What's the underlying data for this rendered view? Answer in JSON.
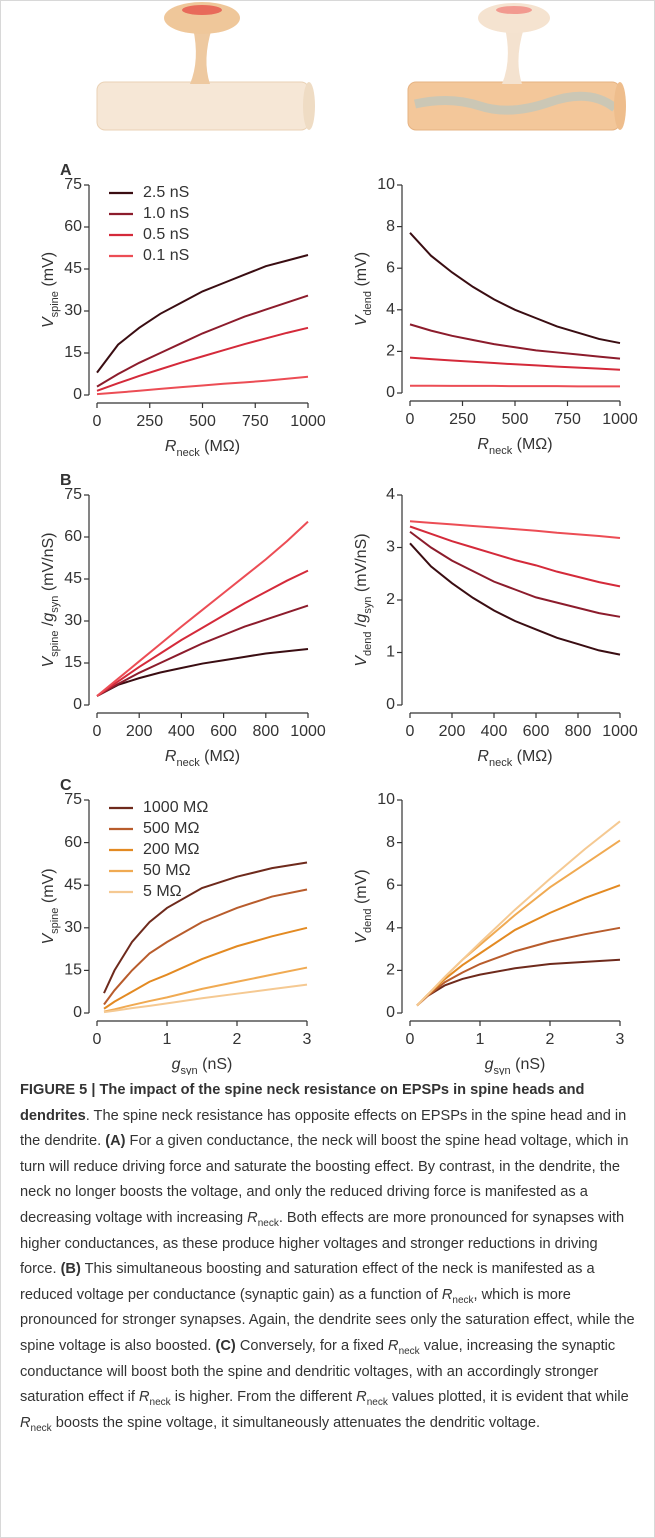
{
  "chart_data": [
    {
      "type": "line",
      "panel": "A",
      "ylabel": [
        {
          "text": "V",
          "italic": true
        },
        {
          "text": "spine",
          "sub": true
        },
        {
          "text": " (mV)"
        }
      ],
      "xlabel": [
        {
          "text": "R",
          "italic": true
        },
        {
          "text": "neck",
          "sub": true
        },
        {
          "text": " (MΩ)"
        }
      ],
      "x": [
        0,
        100,
        200,
        300,
        400,
        500,
        600,
        700,
        800,
        900,
        1000
      ],
      "xlim": [
        0,
        1000
      ],
      "xticks": [
        0,
        250,
        500,
        750,
        1000
      ],
      "ylim": [
        0,
        75
      ],
      "yticks": [
        0,
        15,
        30,
        45,
        60,
        75
      ],
      "legend": "upper left",
      "series": [
        {
          "name": "2.5 nS",
          "color": "#3a0d12",
          "values": [
            8,
            18,
            24,
            29,
            33,
            37,
            40,
            43,
            46,
            48,
            50
          ]
        },
        {
          "name": "1.0 nS",
          "color": "#8c1c2c",
          "values": [
            3,
            7.5,
            11.5,
            15,
            18.5,
            22,
            25,
            28,
            30.5,
            33,
            35.5
          ]
        },
        {
          "name": "0.5 nS",
          "color": "#d42a3a",
          "values": [
            1.5,
            4.2,
            6.8,
            9.2,
            11.6,
            13.8,
            16,
            18.2,
            20.2,
            22.2,
            24
          ]
        },
        {
          "name": "0.1 nS",
          "color": "#ec4d55",
          "values": [
            0.3,
            0.9,
            1.5,
            2.2,
            2.8,
            3.4,
            4,
            4.5,
            5.1,
            5.8,
            6.5
          ]
        }
      ]
    },
    {
      "type": "line",
      "ylabel": [
        {
          "text": "V",
          "italic": true
        },
        {
          "text": "dend",
          "sub": true
        },
        {
          "text": " (mV)"
        }
      ],
      "xlabel": [
        {
          "text": "R",
          "italic": true
        },
        {
          "text": "neck",
          "sub": true
        },
        {
          "text": " (MΩ)"
        }
      ],
      "x": [
        0,
        100,
        200,
        300,
        400,
        500,
        600,
        700,
        800,
        900,
        1000
      ],
      "xlim": [
        0,
        1000
      ],
      "xticks": [
        0,
        250,
        500,
        750,
        1000
      ],
      "ylim": [
        0,
        10
      ],
      "yticks": [
        0,
        2,
        4,
        6,
        8,
        10
      ],
      "series": [
        {
          "color": "#3a0d12",
          "values": [
            7.7,
            6.6,
            5.8,
            5.1,
            4.5,
            4.0,
            3.6,
            3.2,
            2.9,
            2.6,
            2.4
          ]
        },
        {
          "color": "#8c1c2c",
          "values": [
            3.3,
            3.0,
            2.75,
            2.55,
            2.35,
            2.2,
            2.05,
            1.95,
            1.85,
            1.75,
            1.65
          ]
        },
        {
          "color": "#d42a3a",
          "values": [
            1.7,
            1.63,
            1.56,
            1.5,
            1.44,
            1.38,
            1.33,
            1.27,
            1.22,
            1.17,
            1.12
          ]
        },
        {
          "color": "#ec4d55",
          "values": [
            0.35,
            0.35,
            0.34,
            0.34,
            0.34,
            0.33,
            0.33,
            0.33,
            0.32,
            0.32,
            0.32
          ]
        }
      ]
    },
    {
      "type": "line",
      "panel": "B",
      "ylabel": [
        {
          "text": "V",
          "italic": true
        },
        {
          "text": "spine",
          "sub": true
        },
        {
          "text": " /"
        },
        {
          "text": "g",
          "italic": true
        },
        {
          "text": "syn",
          "sub": true
        },
        {
          "text": " (mV/nS)"
        }
      ],
      "xlabel": [
        {
          "text": "R",
          "italic": true
        },
        {
          "text": "neck",
          "sub": true
        },
        {
          "text": " (MΩ)"
        }
      ],
      "x": [
        0,
        100,
        200,
        300,
        400,
        500,
        600,
        700,
        800,
        900,
        1000
      ],
      "xlim": [
        0,
        1000
      ],
      "xticks": [
        0,
        200,
        400,
        600,
        800,
        1000
      ],
      "ylim": [
        0,
        75
      ],
      "yticks": [
        0,
        15,
        30,
        45,
        60,
        75
      ],
      "series": [
        {
          "color": "#3a0d12",
          "values": [
            3.2,
            7.2,
            9.6,
            11.6,
            13.2,
            14.8,
            16,
            17.2,
            18.4,
            19.2,
            20
          ]
        },
        {
          "color": "#8c1c2c",
          "values": [
            3.2,
            7.5,
            11.5,
            15,
            18.5,
            22,
            25,
            28,
            30.5,
            33,
            35.5
          ]
        },
        {
          "color": "#d42a3a",
          "values": [
            3.2,
            8.4,
            13.6,
            18.4,
            23.2,
            27.6,
            32,
            36.4,
            40.4,
            44.4,
            48
          ]
        },
        {
          "color": "#ec4d55",
          "values": [
            3.2,
            9.4,
            15.6,
            21.8,
            28,
            34,
            40,
            46,
            52,
            58.5,
            65.5
          ]
        }
      ]
    },
    {
      "type": "line",
      "ylabel": [
        {
          "text": "V",
          "italic": true
        },
        {
          "text": "dend",
          "sub": true
        },
        {
          "text": " /"
        },
        {
          "text": "g",
          "italic": true
        },
        {
          "text": "syn",
          "sub": true
        },
        {
          "text": " (mV/nS)"
        }
      ],
      "xlabel": [
        {
          "text": "R",
          "italic": true
        },
        {
          "text": "neck",
          "sub": true
        },
        {
          "text": " (MΩ)"
        }
      ],
      "x": [
        0,
        100,
        200,
        300,
        400,
        500,
        600,
        700,
        800,
        900,
        1000
      ],
      "xlim": [
        0,
        1000
      ],
      "xticks": [
        0,
        200,
        400,
        600,
        800,
        1000
      ],
      "ylim": [
        0,
        4
      ],
      "yticks": [
        0,
        1,
        2,
        3,
        4
      ],
      "series": [
        {
          "color": "#3a0d12",
          "values": [
            3.08,
            2.64,
            2.32,
            2.04,
            1.8,
            1.6,
            1.44,
            1.28,
            1.16,
            1.04,
            0.96
          ]
        },
        {
          "color": "#8c1c2c",
          "values": [
            3.3,
            3.0,
            2.75,
            2.55,
            2.35,
            2.2,
            2.05,
            1.95,
            1.85,
            1.75,
            1.68
          ]
        },
        {
          "color": "#d42a3a",
          "values": [
            3.4,
            3.26,
            3.12,
            3.0,
            2.88,
            2.76,
            2.66,
            2.54,
            2.44,
            2.34,
            2.26
          ]
        },
        {
          "color": "#ec4d55",
          "values": [
            3.5,
            3.47,
            3.44,
            3.41,
            3.38,
            3.35,
            3.32,
            3.28,
            3.25,
            3.22,
            3.18
          ]
        }
      ]
    },
    {
      "type": "line",
      "panel": "C",
      "ylabel": [
        {
          "text": "V",
          "italic": true
        },
        {
          "text": "spine",
          "sub": true
        },
        {
          "text": " (mV)"
        }
      ],
      "xlabel": [
        {
          "text": "g",
          "italic": true
        },
        {
          "text": "syn",
          "sub": true
        },
        {
          "text": " (nS)"
        }
      ],
      "x": [
        0.1,
        0.25,
        0.5,
        0.75,
        1,
        1.5,
        2,
        2.5,
        3
      ],
      "xlim": [
        0,
        3
      ],
      "xticks": [
        0,
        1,
        2,
        3
      ],
      "ylim": [
        0,
        75
      ],
      "yticks": [
        0,
        15,
        30,
        45,
        60,
        75
      ],
      "legend": "upper left",
      "series": [
        {
          "name": "1000 MΩ",
          "color": "#6e2a1c",
          "values": [
            7,
            15,
            25,
            32,
            37,
            44,
            48,
            51,
            53
          ]
        },
        {
          "name": "500 MΩ",
          "color": "#b85c2c",
          "values": [
            3,
            8,
            15,
            21,
            25,
            32,
            37,
            41,
            43.5
          ]
        },
        {
          "name": "200 MΩ",
          "color": "#e38a22",
          "values": [
            1.5,
            4,
            7.5,
            11,
            13.5,
            19,
            23.5,
            27,
            30
          ]
        },
        {
          "name": "50 MΩ",
          "color": "#f0aa52",
          "values": [
            0.5,
            1.3,
            2.8,
            4.2,
            5.5,
            8.5,
            11,
            13.5,
            16
          ]
        },
        {
          "name": "5 MΩ",
          "color": "#f5c992",
          "values": [
            0.3,
            0.8,
            1.7,
            2.5,
            3.4,
            5.2,
            6.8,
            8.4,
            10
          ]
        }
      ]
    },
    {
      "type": "line",
      "ylabel": [
        {
          "text": "V",
          "italic": true
        },
        {
          "text": "dend",
          "sub": true
        },
        {
          "text": " (mV)"
        }
      ],
      "xlabel": [
        {
          "text": "g",
          "italic": true
        },
        {
          "text": "syn",
          "sub": true
        },
        {
          "text": " (nS)"
        }
      ],
      "x": [
        0.1,
        0.25,
        0.5,
        0.75,
        1,
        1.5,
        2,
        2.5,
        3
      ],
      "xlim": [
        0,
        3
      ],
      "xticks": [
        0,
        1,
        2,
        3
      ],
      "ylim": [
        0,
        10
      ],
      "yticks": [
        0,
        2,
        4,
        6,
        8,
        10
      ],
      "series": [
        {
          "color": "#6e2a1c",
          "values": [
            0.35,
            0.8,
            1.3,
            1.6,
            1.8,
            2.1,
            2.3,
            2.4,
            2.5
          ]
        },
        {
          "color": "#b85c2c",
          "values": [
            0.35,
            0.8,
            1.45,
            1.9,
            2.3,
            2.9,
            3.35,
            3.7,
            4.0
          ]
        },
        {
          "color": "#e38a22",
          "values": [
            0.35,
            0.85,
            1.6,
            2.25,
            2.8,
            3.9,
            4.7,
            5.4,
            6.0
          ]
        },
        {
          "color": "#f0aa52",
          "values": [
            0.35,
            0.85,
            1.7,
            2.5,
            3.2,
            4.6,
            5.9,
            7.0,
            8.1
          ]
        },
        {
          "color": "#f5c992",
          "values": [
            0.35,
            0.85,
            1.7,
            2.5,
            3.3,
            4.85,
            6.3,
            7.7,
            9.0
          ]
        }
      ]
    }
  ],
  "caption": {
    "runs": [
      {
        "text": "FIGURE 5 | The impact of the spine neck resistance on EPSPs in spine heads and dendrites",
        "bold": true
      },
      {
        "text": ". The spine neck resistance has opposite effects on EPSPs in the spine head and in the dendrite. "
      },
      {
        "text": "(A)",
        "bold": true
      },
      {
        "text": " For a given conductance, the neck will boost the spine head voltage, which in turn will reduce driving force and saturate the boosting effect. By contrast, in the dendrite, the neck no longer boosts the voltage, and only the reduced driving force is manifested as a decreasing voltage with increasing "
      },
      {
        "text": "R",
        "italic": true
      },
      {
        "text": "neck",
        "sub": true
      },
      {
        "text": ". Both effects are more pronounced for synapses with higher conductances, as these produce higher voltages and stronger reductions in driving force. "
      },
      {
        "text": "(B)",
        "bold": true
      },
      {
        "text": " This simultaneous boosting and saturation effect of the neck is manifested as a reduced voltage per conductance (synaptic gain) as a function of "
      },
      {
        "text": "R",
        "italic": true
      },
      {
        "text": "neck",
        "sub": true
      },
      {
        "text": ", which is more pronounced for stronger synapses. Again, the dendrite sees only the saturation effect, while the spine voltage is also boosted. "
      },
      {
        "text": "(C)",
        "bold": true
      },
      {
        "text": " Conversely, for a fixed "
      },
      {
        "text": "R",
        "italic": true
      },
      {
        "text": "neck",
        "sub": true
      },
      {
        "text": " value, increasing the synaptic conductance will boost both the spine and dendritic voltages, with an accordingly stronger saturation effect if "
      },
      {
        "text": "R",
        "italic": true
      },
      {
        "text": "neck",
        "sub": true
      },
      {
        "text": " is higher. From the different "
      },
      {
        "text": "R",
        "italic": true
      },
      {
        "text": "neck",
        "sub": true
      },
      {
        "text": " values plotted, it is evident that while "
      },
      {
        "text": "R",
        "italic": true
      },
      {
        "text": "neck",
        "sub": true
      },
      {
        "text": " boosts the spine voltage, it simultaneously attenuates the dendritic voltage."
      }
    ]
  }
}
